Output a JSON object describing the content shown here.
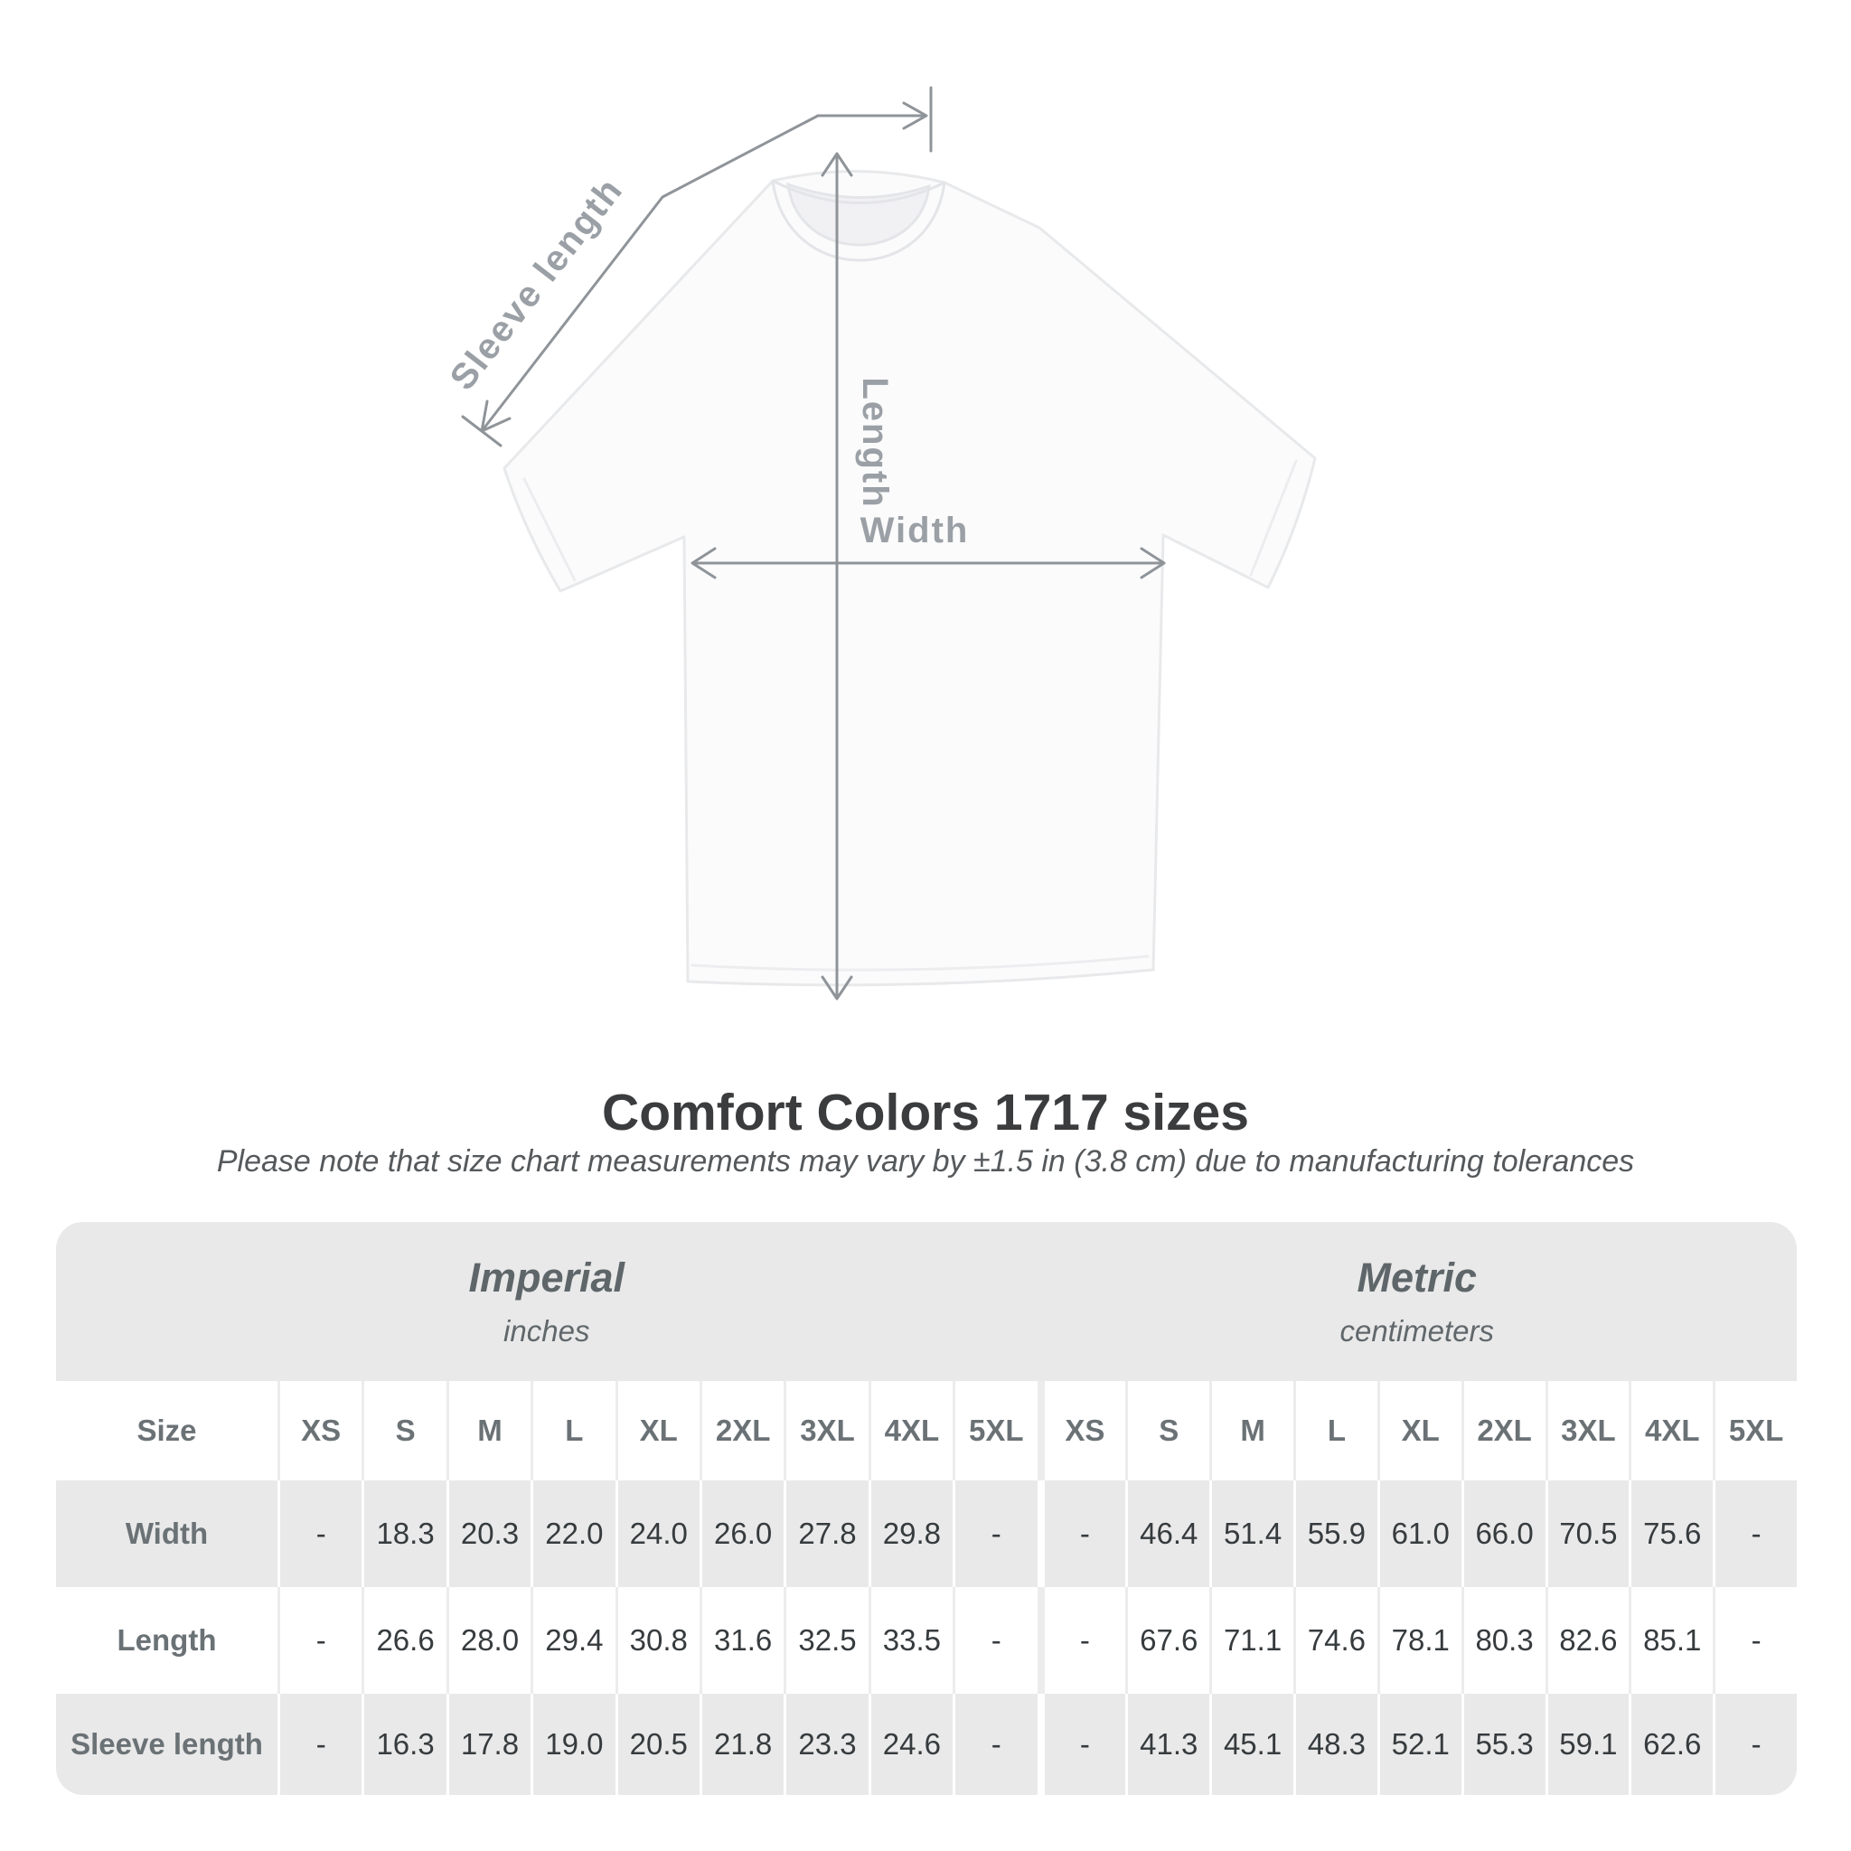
{
  "diagram": {
    "labels": {
      "sleeve_length": "Sleeve length",
      "length": "Length",
      "width": "Width"
    },
    "line_color": "#8f9499",
    "label_color": "#9aa0a5"
  },
  "heading": {
    "title": "Comfort Colors 1717 sizes",
    "subtitle": "Please note that size chart measurements may vary by ±1.5 in (3.8 cm) due to manufacturing tolerances"
  },
  "table": {
    "unit_headers": {
      "imperial": {
        "label": "Imperial",
        "unit": "inches"
      },
      "metric": {
        "label": "Metric",
        "unit": "centimeters"
      }
    },
    "size_header": {
      "label": "Size",
      "imperial": [
        "XS",
        "S",
        "M",
        "L",
        "XL",
        "2XL",
        "3XL",
        "4XL",
        "5XL"
      ],
      "metric": [
        "XS",
        "S",
        "M",
        "L",
        "XL",
        "2XL",
        "3XL",
        "4XL",
        "5XL"
      ]
    },
    "rows": [
      {
        "label": "Width",
        "imperial": [
          "-",
          "18.3",
          "20.3",
          "22.0",
          "24.0",
          "26.0",
          "27.8",
          "29.8",
          "-"
        ],
        "metric": [
          "-",
          "46.4",
          "51.4",
          "55.9",
          "61.0",
          "66.0",
          "70.5",
          "75.6",
          "-"
        ]
      },
      {
        "label": "Length",
        "imperial": [
          "-",
          "26.6",
          "28.0",
          "29.4",
          "30.8",
          "31.6",
          "32.5",
          "33.5",
          "-"
        ],
        "metric": [
          "-",
          "67.6",
          "71.1",
          "74.6",
          "78.1",
          "80.3",
          "82.6",
          "85.1",
          "-"
        ]
      },
      {
        "label": "Sleeve length",
        "imperial": [
          "-",
          "16.3",
          "17.8",
          "19.0",
          "20.5",
          "21.8",
          "23.3",
          "24.6",
          "-"
        ],
        "metric": [
          "-",
          "41.3",
          "45.1",
          "48.3",
          "52.1",
          "55.3",
          "59.1",
          "62.6",
          "-"
        ]
      }
    ],
    "colors": {
      "header_band": "#e9e9e9",
      "alt_row": "#e9e9e9",
      "row": "#ffffff",
      "value_text": "#363b3e",
      "label_text": "#6b7276"
    }
  },
  "chart_data": {
    "type": "table",
    "title": "Comfort Colors 1717 sizes",
    "note": "Size chart measurements may vary by ±1.5 in (3.8 cm) due to manufacturing tolerances",
    "column_groups": [
      "Imperial (inches)",
      "Metric (centimeters)"
    ],
    "sizes": [
      "XS",
      "S",
      "M",
      "L",
      "XL",
      "2XL",
      "3XL",
      "4XL",
      "5XL"
    ],
    "measurements_imperial_in": {
      "Width": [
        null,
        18.3,
        20.3,
        22.0,
        24.0,
        26.0,
        27.8,
        29.8,
        null
      ],
      "Length": [
        null,
        26.6,
        28.0,
        29.4,
        30.8,
        31.6,
        32.5,
        33.5,
        null
      ],
      "Sleeve length": [
        null,
        16.3,
        17.8,
        19.0,
        20.5,
        21.8,
        23.3,
        24.6,
        null
      ]
    },
    "measurements_metric_cm": {
      "Width": [
        null,
        46.4,
        51.4,
        55.9,
        61.0,
        66.0,
        70.5,
        75.6,
        null
      ],
      "Length": [
        null,
        67.6,
        71.1,
        74.6,
        78.1,
        80.3,
        82.6,
        85.1,
        null
      ],
      "Sleeve length": [
        null,
        41.3,
        45.1,
        48.3,
        52.1,
        55.3,
        59.1,
        62.6,
        null
      ]
    }
  }
}
